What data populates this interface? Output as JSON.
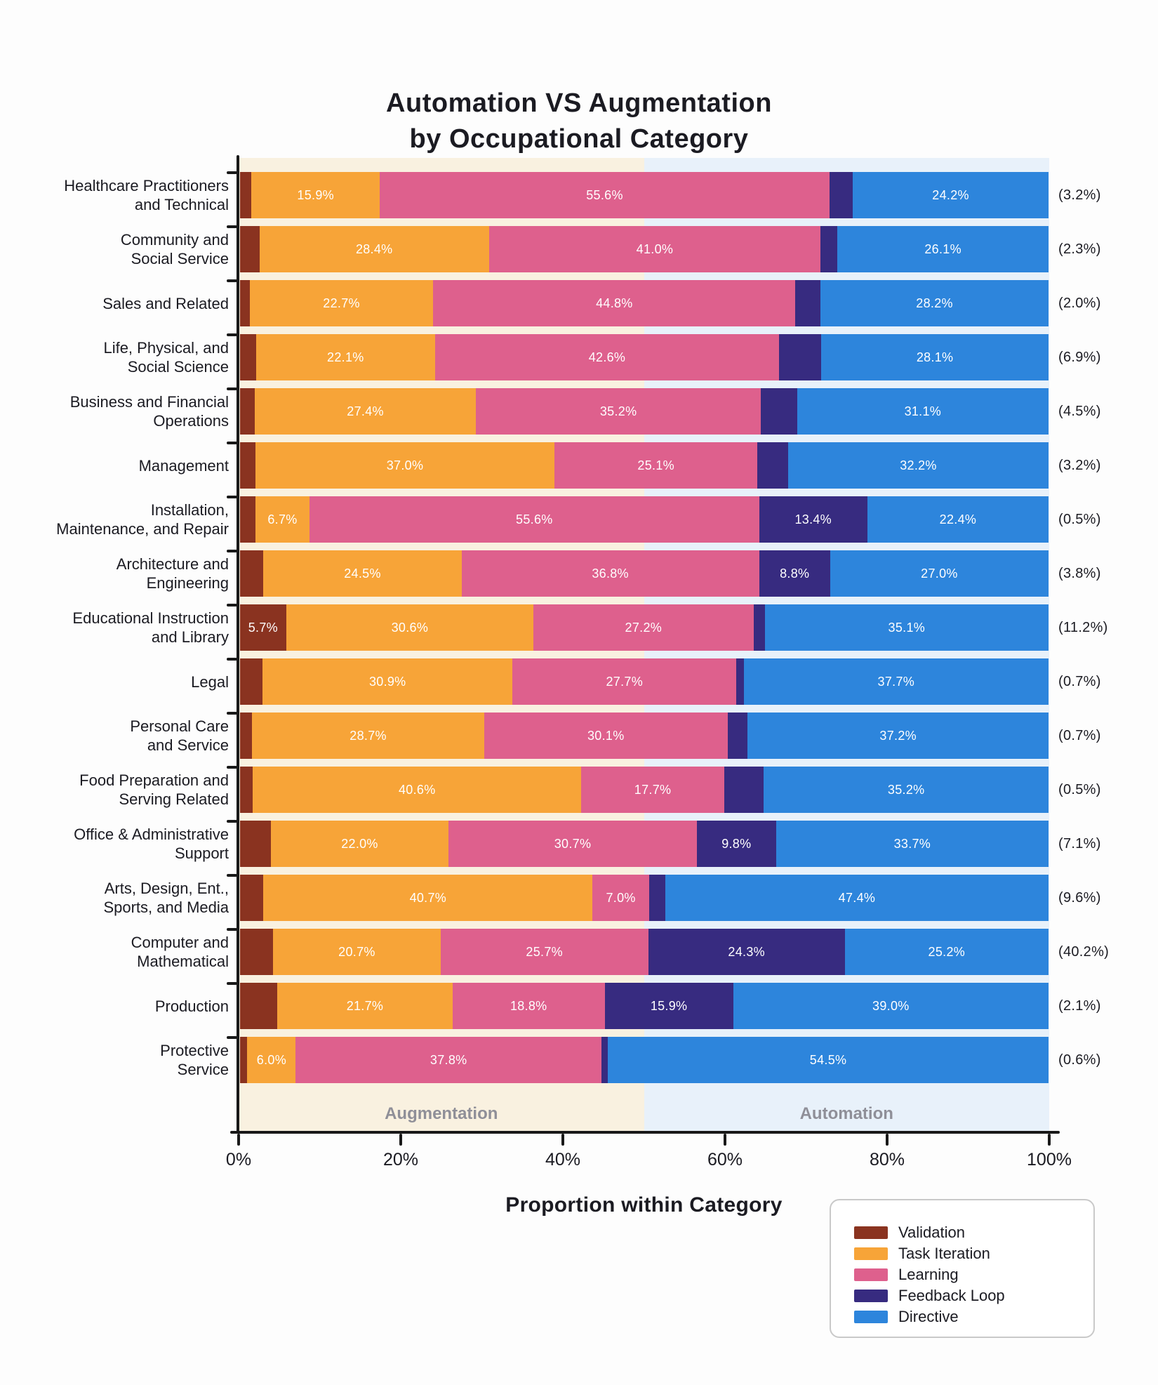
{
  "title": {
    "line1": "Automation VS Augmentation",
    "line2": "by Occupational Category"
  },
  "chart_data": {
    "type": "bar",
    "orientation": "horizontal_stacked",
    "title": "Automation VS Augmentation by Occupational Category",
    "xlabel": "Proportion within Category",
    "xlim": [
      0,
      100
    ],
    "x_tick_labels": [
      "0%",
      "20%",
      "40%",
      "60%",
      "80%",
      "100%"
    ],
    "x_tick_values": [
      0,
      20,
      40,
      60,
      80,
      100
    ],
    "segment_label_min_value": 5.5,
    "segment_label_format": "{value}%",
    "regions": [
      {
        "label": "Augmentation",
        "range": [
          0,
          50
        ],
        "color": "#F9F1E0",
        "label_color": "#8F8F98"
      },
      {
        "label": "Automation",
        "range": [
          50,
          100
        ],
        "color": "#E8F1FA",
        "label_color": "#8F8F98"
      }
    ],
    "legend": {
      "position": "bottom-right",
      "entries": [
        {
          "key": "validation",
          "label": "Validation",
          "color": "#8A3320"
        },
        {
          "key": "task_iteration",
          "label": "Task Iteration",
          "color": "#F7A438"
        },
        {
          "key": "learning",
          "label": "Learning",
          "color": "#DE608D"
        },
        {
          "key": "feedback_loop",
          "label": "Feedback Loop",
          "color": "#372B80"
        },
        {
          "key": "directive",
          "label": "Directive",
          "color": "#2D85DC"
        }
      ]
    },
    "categories": [
      {
        "name": "Healthcare Practitioners and Technical",
        "name_lines": [
          "Healthcare Practitioners",
          "and Technical"
        ],
        "share": "(3.2%)",
        "values": {
          "validation": 1.4,
          "task_iteration": 15.9,
          "learning": 55.6,
          "feedback_loop": 2.9,
          "directive": 24.2
        }
      },
      {
        "name": "Community and Social Service",
        "name_lines": [
          "Community and",
          "Social Service"
        ],
        "share": "(2.3%)",
        "values": {
          "validation": 2.4,
          "task_iteration": 28.4,
          "learning": 41.0,
          "feedback_loop": 2.1,
          "directive": 26.1
        }
      },
      {
        "name": "Sales and Related",
        "name_lines": [
          "Sales and Related"
        ],
        "share": "(2.0%)",
        "values": {
          "validation": 1.2,
          "task_iteration": 22.7,
          "learning": 44.8,
          "feedback_loop": 3.1,
          "directive": 28.2
        }
      },
      {
        "name": "Life, Physical, and Social Science",
        "name_lines": [
          "Life, Physical, and",
          "Social Science"
        ],
        "share": "(6.9%)",
        "values": {
          "validation": 2.0,
          "task_iteration": 22.1,
          "learning": 42.6,
          "feedback_loop": 5.2,
          "directive": 28.1
        }
      },
      {
        "name": "Business and Financial Operations",
        "name_lines": [
          "Business and Financial",
          "Operations"
        ],
        "share": "(4.5%)",
        "values": {
          "validation": 1.8,
          "task_iteration": 27.4,
          "learning": 35.2,
          "feedback_loop": 4.5,
          "directive": 31.1
        }
      },
      {
        "name": "Management",
        "name_lines": [
          "Management"
        ],
        "share": "(3.2%)",
        "values": {
          "validation": 1.9,
          "task_iteration": 37.0,
          "learning": 25.1,
          "feedback_loop": 3.8,
          "directive": 32.2
        }
      },
      {
        "name": "Installation, Maintenance, and Repair",
        "name_lines": [
          "Installation,",
          "Maintenance, and Repair"
        ],
        "share": "(0.5%)",
        "values": {
          "validation": 1.9,
          "task_iteration": 6.7,
          "learning": 55.6,
          "feedback_loop": 13.4,
          "directive": 22.4
        }
      },
      {
        "name": "Architecture and Engineering",
        "name_lines": [
          "Architecture and",
          "Engineering"
        ],
        "share": "(3.8%)",
        "values": {
          "validation": 2.9,
          "task_iteration": 24.5,
          "learning": 36.8,
          "feedback_loop": 8.8,
          "directive": 27.0
        }
      },
      {
        "name": "Educational Instruction and Library",
        "name_lines": [
          "Educational Instruction",
          "and Library"
        ],
        "share": "(11.2%)",
        "values": {
          "validation": 5.7,
          "task_iteration": 30.6,
          "learning": 27.2,
          "feedback_loop": 1.4,
          "directive": 35.1
        }
      },
      {
        "name": "Legal",
        "name_lines": [
          "Legal"
        ],
        "share": "(0.7%)",
        "values": {
          "validation": 2.8,
          "task_iteration": 30.9,
          "learning": 27.7,
          "feedback_loop": 0.9,
          "directive": 37.7
        }
      },
      {
        "name": "Personal Care and Service",
        "name_lines": [
          "Personal Care",
          "and Service"
        ],
        "share": "(0.7%)",
        "values": {
          "validation": 1.5,
          "task_iteration": 28.7,
          "learning": 30.1,
          "feedback_loop": 2.5,
          "directive": 37.2
        }
      },
      {
        "name": "Food Preparation and Serving Related",
        "name_lines": [
          "Food Preparation and",
          "Serving Related"
        ],
        "share": "(0.5%)",
        "values": {
          "validation": 1.6,
          "task_iteration": 40.6,
          "learning": 17.7,
          "feedback_loop": 4.9,
          "directive": 35.2
        }
      },
      {
        "name": "Office & Administrative Support",
        "name_lines": [
          "Office & Administrative",
          "Support"
        ],
        "share": "(7.1%)",
        "values": {
          "validation": 3.8,
          "task_iteration": 22.0,
          "learning": 30.7,
          "feedback_loop": 9.8,
          "directive": 33.7
        }
      },
      {
        "name": "Arts, Design, Ent., Sports, and Media",
        "name_lines": [
          "Arts, Design, Ent.,",
          "Sports, and Media"
        ],
        "share": "(9.6%)",
        "values": {
          "validation": 2.9,
          "task_iteration": 40.7,
          "learning": 7.0,
          "feedback_loop": 2.0,
          "directive": 47.4
        }
      },
      {
        "name": "Computer and Mathematical",
        "name_lines": [
          "Computer and",
          "Mathematical"
        ],
        "share": "(40.2%)",
        "values": {
          "validation": 4.1,
          "task_iteration": 20.7,
          "learning": 25.7,
          "feedback_loop": 24.3,
          "directive": 25.2
        }
      },
      {
        "name": "Production",
        "name_lines": [
          "Production"
        ],
        "share": "(2.1%)",
        "values": {
          "validation": 4.6,
          "task_iteration": 21.7,
          "learning": 18.8,
          "feedback_loop": 15.9,
          "directive": 39.0
        }
      },
      {
        "name": "Protective Service",
        "name_lines": [
          "Protective",
          "Service"
        ],
        "share": "(0.6%)",
        "values": {
          "validation": 0.9,
          "task_iteration": 6.0,
          "learning": 37.8,
          "feedback_loop": 0.8,
          "directive": 54.5
        }
      }
    ]
  }
}
